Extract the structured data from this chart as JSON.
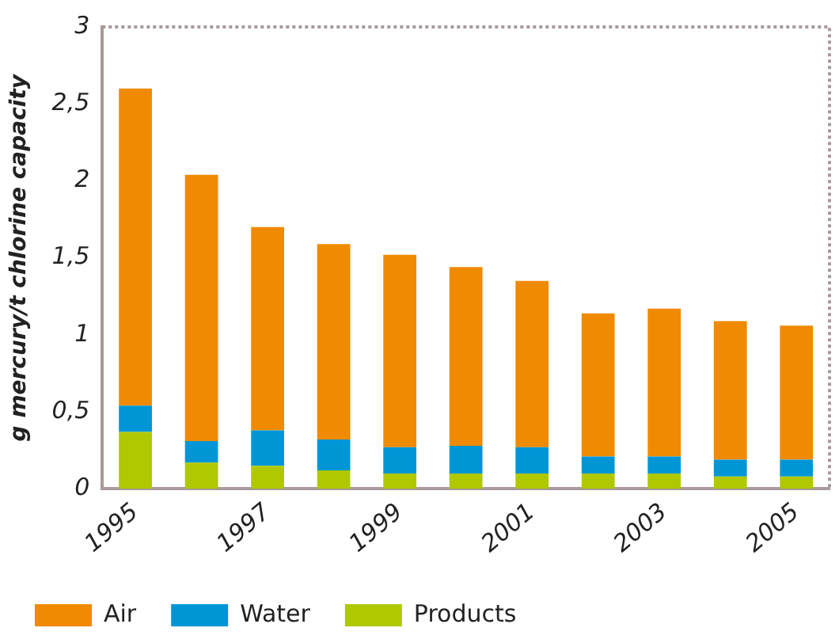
{
  "chart_data": {
    "type": "bar",
    "stacked": true,
    "ylabel": "g mercury/t chlorine capacity",
    "categories": [
      "1995",
      null,
      "1997",
      null,
      "1999",
      null,
      "2001",
      null,
      "2003",
      null,
      "2005"
    ],
    "series": [
      {
        "name": "Products",
        "color": "#afc800",
        "values": [
          0.37,
          0.17,
          0.15,
          0.12,
          0.1,
          0.1,
          0.1,
          0.1,
          0.1,
          0.08,
          0.08
        ]
      },
      {
        "name": "Water",
        "color": "#0096d6",
        "values": [
          0.17,
          0.14,
          0.23,
          0.2,
          0.17,
          0.18,
          0.17,
          0.11,
          0.11,
          0.11,
          0.11
        ]
      },
      {
        "name": "Air",
        "color": "#f08a00",
        "values": [
          2.06,
          1.73,
          1.32,
          1.27,
          1.25,
          1.16,
          1.08,
          0.93,
          0.96,
          0.9,
          0.87
        ]
      }
    ],
    "ylim": [
      0,
      3
    ],
    "yticks": [
      {
        "value": 0,
        "label": "0"
      },
      {
        "value": 0.5,
        "label": "0,5"
      },
      {
        "value": 1,
        "label": "1"
      },
      {
        "value": 1.5,
        "label": "1,5"
      },
      {
        "value": 2,
        "label": "2"
      },
      {
        "value": 2.5,
        "label": "2,5"
      },
      {
        "value": 3,
        "label": "3"
      }
    ],
    "grid": false,
    "legend": "bottom left"
  }
}
